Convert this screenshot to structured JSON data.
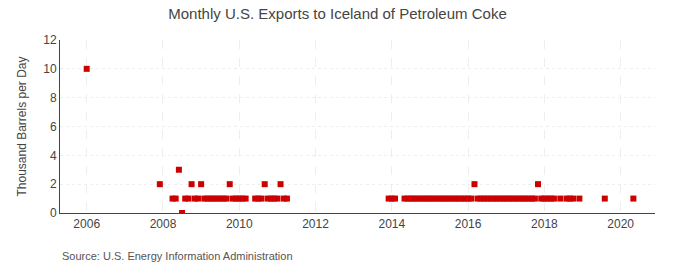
{
  "chart_data": {
    "type": "scatter",
    "title": "Monthly U.S. Exports to Iceland of Petroleum Coke",
    "ylabel": "Thousand Barrels per Day",
    "annotation": "Source: U.S. Energy Information Administration",
    "color": "#cc0000",
    "marker": "square",
    "grid": true,
    "xlim": [
      2005.3,
      2020.9
    ],
    "xticks": [
      2006,
      2008,
      2010,
      2012,
      2014,
      2016,
      2018,
      2020
    ],
    "ylim": [
      0,
      12
    ],
    "yticks": [
      0,
      2,
      4,
      6,
      8,
      10,
      12
    ],
    "x": [
      2006.0,
      2007.917,
      2008.25,
      2008.333,
      2008.417,
      2008.5,
      2008.583,
      2008.667,
      2008.75,
      2008.833,
      2008.917,
      2009.0,
      2009.083,
      2009.167,
      2009.25,
      2009.333,
      2009.417,
      2009.5,
      2009.583,
      2009.667,
      2009.75,
      2009.833,
      2009.917,
      2010.0,
      2010.083,
      2010.167,
      2010.417,
      2010.5,
      2010.583,
      2010.667,
      2010.75,
      2010.833,
      2010.917,
      2011.0,
      2011.083,
      2011.167,
      2011.25,
      2013.917,
      2014.0,
      2014.083,
      2014.333,
      2014.417,
      2014.5,
      2014.583,
      2014.667,
      2014.75,
      2014.833,
      2014.917,
      2015.0,
      2015.083,
      2015.167,
      2015.25,
      2015.333,
      2015.417,
      2015.5,
      2015.583,
      2015.667,
      2015.75,
      2015.833,
      2015.917,
      2016.0,
      2016.083,
      2016.167,
      2016.25,
      2016.333,
      2016.417,
      2016.5,
      2016.583,
      2016.667,
      2016.75,
      2016.833,
      2016.917,
      2017.0,
      2017.083,
      2017.167,
      2017.25,
      2017.333,
      2017.417,
      2017.5,
      2017.583,
      2017.667,
      2017.75,
      2017.833,
      2017.917,
      2018.0,
      2018.083,
      2018.167,
      2018.25,
      2018.417,
      2018.583,
      2018.667,
      2018.75,
      2018.917,
      2019.583,
      2020.333
    ],
    "values": [
      10,
      2,
      1,
      1,
      3,
      0,
      1,
      1,
      2,
      1,
      1,
      2,
      1,
      1,
      1,
      1,
      1,
      1,
      1,
      1,
      2,
      1,
      1,
      1,
      1,
      1,
      1,
      1,
      1,
      2,
      1,
      1,
      1,
      1,
      2,
      1,
      1,
      1,
      1,
      1,
      1,
      1,
      1,
      1,
      1,
      1,
      1,
      1,
      1,
      1,
      1,
      1,
      1,
      1,
      1,
      1,
      1,
      1,
      1,
      1,
      1,
      1,
      2,
      1,
      1,
      1,
      1,
      1,
      1,
      1,
      1,
      1,
      1,
      1,
      1,
      1,
      1,
      1,
      1,
      1,
      1,
      1,
      2,
      1,
      1,
      1,
      1,
      1,
      1,
      1,
      1,
      1,
      1,
      1,
      1
    ]
  }
}
